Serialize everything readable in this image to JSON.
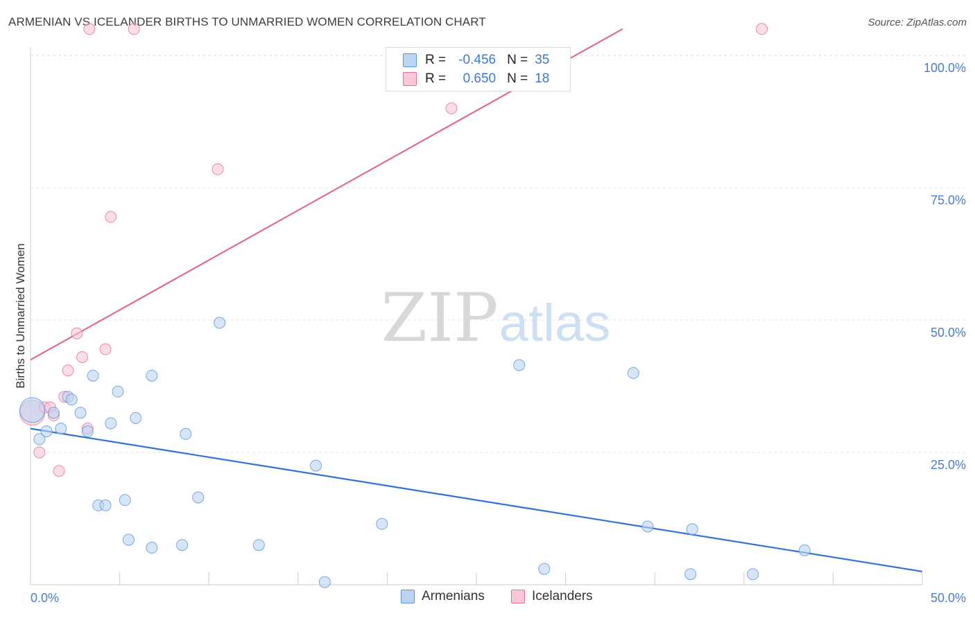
{
  "title": "ARMENIAN VS ICELANDER BIRTHS TO UNMARRIED WOMEN CORRELATION CHART",
  "source": "Source: ZipAtlas.com",
  "watermark": {
    "zip": "ZIP",
    "atlas": "atlas"
  },
  "colors": {
    "armenians": "#5b93d8",
    "armenians_fill": "#bcd4f4",
    "icelanders": "#e46f98",
    "icelanders_fill": "#f9c7d7",
    "axis_text": "#4a7cc7",
    "grid": "#e2e2e2"
  },
  "legend": {
    "rows": [
      {
        "r_label": "R =",
        "r_value": "-0.456",
        "n_label": "N =",
        "n_value": "35"
      },
      {
        "r_label": "R =",
        "r_value": "0.650",
        "n_label": "N =",
        "n_value": "18"
      }
    ]
  },
  "bottom_legend": {
    "armenians": "Armenians",
    "icelanders": "Icelanders"
  },
  "chart_data": {
    "type": "scatter",
    "ylabel": "Births to Unmarried Women",
    "xlim": [
      0,
      50
    ],
    "ylim": [
      0,
      100
    ],
    "x_tick_labels": {
      "min": "0.0%",
      "max": "50.0%"
    },
    "y_ticks": [
      {
        "value": 25,
        "label": "25.0%"
      },
      {
        "value": 50,
        "label": "50.0%"
      },
      {
        "value": 75,
        "label": "75.0%"
      },
      {
        "value": 100,
        "label": "100.0%"
      }
    ],
    "series": [
      {
        "name": "Armenians",
        "r": -0.456,
        "n": 35,
        "trend": {
          "x": [
            0,
            50
          ],
          "y": [
            29.5,
            2.5
          ]
        },
        "points": [
          {
            "x": 0.1,
            "y": 33.0,
            "big": true
          },
          {
            "x": 0.5,
            "y": 27.5
          },
          {
            "x": 0.9,
            "y": 29.0
          },
          {
            "x": 1.3,
            "y": 32.5
          },
          {
            "x": 1.7,
            "y": 29.5
          },
          {
            "x": 2.1,
            "y": 35.5
          },
          {
            "x": 2.3,
            "y": 35.0
          },
          {
            "x": 2.8,
            "y": 32.5
          },
          {
            "x": 3.2,
            "y": 29.0
          },
          {
            "x": 3.5,
            "y": 39.5
          },
          {
            "x": 3.8,
            "y": 15.0
          },
          {
            "x": 4.2,
            "y": 15.0
          },
          {
            "x": 4.5,
            "y": 30.5
          },
          {
            "x": 4.9,
            "y": 36.5
          },
          {
            "x": 5.3,
            "y": 16.0
          },
          {
            "x": 5.5,
            "y": 8.5
          },
          {
            "x": 5.9,
            "y": 31.5
          },
          {
            "x": 6.8,
            "y": 39.5
          },
          {
            "x": 6.8,
            "y": 7.0
          },
          {
            "x": 8.5,
            "y": 7.5
          },
          {
            "x": 8.7,
            "y": 28.5
          },
          {
            "x": 9.4,
            "y": 16.5
          },
          {
            "x": 10.6,
            "y": 49.5
          },
          {
            "x": 12.8,
            "y": 7.5
          },
          {
            "x": 16.0,
            "y": 22.5
          },
          {
            "x": 16.5,
            "y": 0.5
          },
          {
            "x": 19.7,
            "y": 11.5
          },
          {
            "x": 27.4,
            "y": 41.5
          },
          {
            "x": 28.8,
            "y": 3.0
          },
          {
            "x": 33.8,
            "y": 40.0
          },
          {
            "x": 34.6,
            "y": 11.0
          },
          {
            "x": 37.0,
            "y": 2.0
          },
          {
            "x": 37.1,
            "y": 10.5
          },
          {
            "x": 40.5,
            "y": 2.0
          },
          {
            "x": 43.4,
            "y": 6.5
          }
        ]
      },
      {
        "name": "Icelanders",
        "r": 0.65,
        "n": 18,
        "trend": {
          "x": [
            0,
            33.2
          ],
          "y": [
            42.5,
            105.0
          ]
        },
        "points": [
          {
            "x": 0.1,
            "y": 32.5,
            "big": true
          },
          {
            "x": 0.5,
            "y": 25.0
          },
          {
            "x": 0.8,
            "y": 33.5
          },
          {
            "x": 1.1,
            "y": 33.5
          },
          {
            "x": 1.3,
            "y": 32.0
          },
          {
            "x": 1.6,
            "y": 21.5
          },
          {
            "x": 1.9,
            "y": 35.5
          },
          {
            "x": 2.1,
            "y": 40.5
          },
          {
            "x": 2.6,
            "y": 47.5
          },
          {
            "x": 2.9,
            "y": 43.0
          },
          {
            "x": 3.2,
            "y": 29.5
          },
          {
            "x": 3.3,
            "y": 105.0
          },
          {
            "x": 4.2,
            "y": 44.5
          },
          {
            "x": 4.5,
            "y": 69.5
          },
          {
            "x": 5.8,
            "y": 105.0
          },
          {
            "x": 10.5,
            "y": 78.5
          },
          {
            "x": 23.6,
            "y": 90.0
          },
          {
            "x": 41.0,
            "y": 105.0
          }
        ]
      }
    ],
    "grid": true,
    "legend_placement": "top-center"
  }
}
